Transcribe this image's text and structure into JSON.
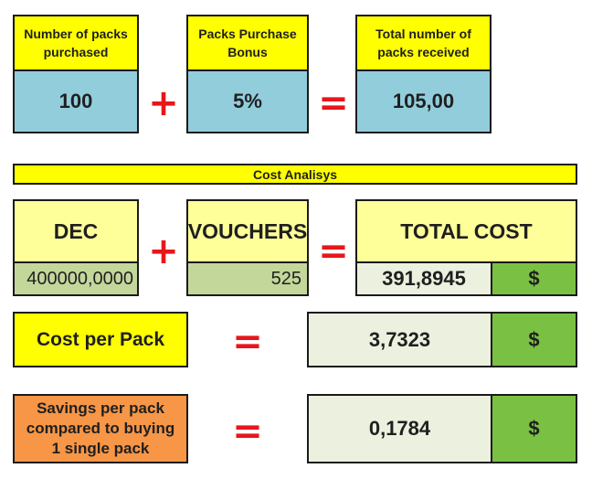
{
  "top": {
    "packs_label": "Number of packs purchased",
    "packs_value": "100",
    "bonus_label": "Packs Purchase Bonus",
    "bonus_value": "5%",
    "total_label": "Total number of packs received",
    "total_value": "105,00",
    "plus_sign": "+",
    "equals_sign": "="
  },
  "cost_analysis": {
    "title": "Cost Analisys",
    "dec_label": "DEC",
    "dec_value": "400000,0000",
    "vouchers_label": "VOUCHERS",
    "vouchers_value": "525",
    "total_cost_label": "TOTAL COST",
    "total_cost_value": "391,8945",
    "currency": "$",
    "plus_sign": "+",
    "equals_sign": "="
  },
  "cost_per_pack": {
    "label": "Cost per Pack",
    "value": "3,7323",
    "currency": "$",
    "equals_sign": "="
  },
  "savings": {
    "label": "Savings per pack compared to buying 1 single pack",
    "value": "0,1784",
    "currency": "$",
    "equals_sign": "="
  },
  "colors": {
    "yellow": "#ffff00",
    "light_yellow": "#ffff99",
    "blue": "#92cddc",
    "sage": "#c4d79b",
    "mint": "#ebf1de",
    "green": "#7ac143",
    "orange": "#f79646",
    "operator_red": "#e8161b"
  }
}
